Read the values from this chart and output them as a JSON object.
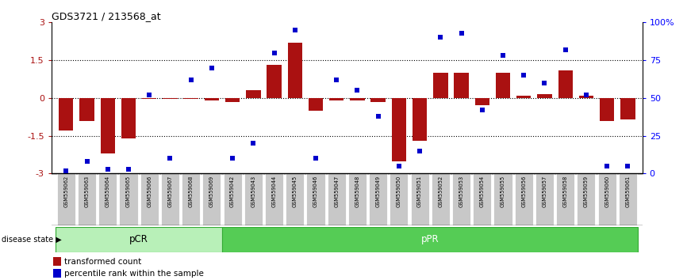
{
  "title": "GDS3721 / 213568_at",
  "samples": [
    "GSM559062",
    "GSM559063",
    "GSM559064",
    "GSM559065",
    "GSM559066",
    "GSM559067",
    "GSM559068",
    "GSM559069",
    "GSM559042",
    "GSM559043",
    "GSM559044",
    "GSM559045",
    "GSM559046",
    "GSM559047",
    "GSM559048",
    "GSM559049",
    "GSM559050",
    "GSM559051",
    "GSM559052",
    "GSM559053",
    "GSM559054",
    "GSM559055",
    "GSM559056",
    "GSM559057",
    "GSM559058",
    "GSM559059",
    "GSM559060",
    "GSM559061"
  ],
  "bar_values": [
    -1.3,
    -0.9,
    -2.2,
    -1.6,
    -0.05,
    -0.05,
    -0.05,
    -0.1,
    -0.15,
    0.3,
    1.3,
    2.2,
    -0.5,
    -0.1,
    -0.1,
    -0.15,
    -2.5,
    -1.7,
    1.0,
    1.0,
    -0.3,
    1.0,
    0.1,
    0.15,
    1.1,
    0.1,
    -0.9,
    -0.85
  ],
  "scatter_values": [
    2,
    8,
    3,
    3,
    52,
    10,
    62,
    70,
    10,
    20,
    80,
    95,
    10,
    62,
    55,
    38,
    5,
    15,
    90,
    93,
    42,
    78,
    65,
    60,
    82,
    52,
    5,
    5
  ],
  "pCR_count": 8,
  "pPR_count": 20,
  "ylim_left": [
    -3,
    3
  ],
  "ylim_right": [
    0,
    100
  ],
  "yticks_left": [
    -3,
    -1.5,
    0,
    1.5,
    3
  ],
  "ytick_labels_left": [
    "-3",
    "-1.5",
    "0",
    "1.5",
    "3"
  ],
  "yticks_right": [
    0,
    25,
    50,
    75,
    100
  ],
  "ytick_labels_right": [
    "0",
    "25",
    "50",
    "75",
    "100%"
  ],
  "bar_color": "#aa1111",
  "scatter_color": "#0000cc",
  "pCR_color": "#b8f0b8",
  "pPR_color": "#55cc55",
  "label_bg_color": "#c8c8c8",
  "legend_bar_label": "transformed count",
  "legend_scatter_label": "percentile rank within the sample",
  "disease_state_label": "disease state"
}
